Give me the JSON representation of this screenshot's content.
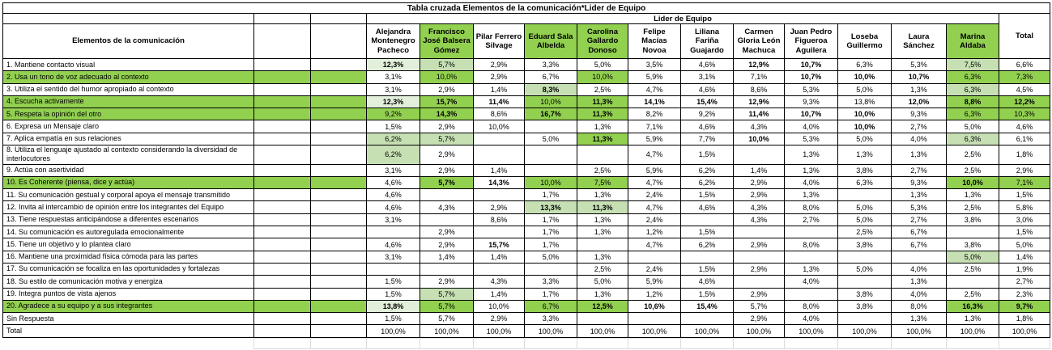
{
  "title": "Tabla cruzada Elementos de la comunicación*Lider de Equipo",
  "group_header": "Lider de Equipo",
  "row_header": "Elementos de la comunicación",
  "total_label": "Total",
  "colors": {
    "green_bright": "#92D050",
    "green_medium": "#C6E0B4",
    "green_pale": "#E2EFDA",
    "border": "#000000",
    "ghost_grid": "#dcdcdc"
  },
  "leaders": [
    {
      "name": "Alejandra Montenegro Pacheco",
      "highlight": false
    },
    {
      "name": "Francisco José Balsera Gómez",
      "highlight": true
    },
    {
      "name": "Pilar Ferrero Silvage",
      "highlight": false
    },
    {
      "name": "Eduard Sala Albelda",
      "highlight": true
    },
    {
      "name": "Carolina Gallardo Donoso",
      "highlight": true
    },
    {
      "name": "Felipe Macías Novoa",
      "highlight": false
    },
    {
      "name": "Liliana Fariña Guajardo",
      "highlight": false
    },
    {
      "name": "Carmen Gloria León Machuca",
      "highlight": false
    },
    {
      "name": "Juan Pedro Figueroa Aguilera",
      "highlight": false
    },
    {
      "name": "Loseba Guillermo",
      "highlight": false
    },
    {
      "name": "Laura Sánchez",
      "highlight": false
    },
    {
      "name": "Marina Aldaba",
      "highlight": true
    }
  ],
  "rows": [
    {
      "label": "1. Mantiene  contacto visual",
      "label_highlight": false,
      "cells": [
        {
          "v": "12,3%",
          "bg": "p",
          "b": true
        },
        {
          "v": "5,7%",
          "bg": "m"
        },
        {
          "v": "2,9%"
        },
        {
          "v": "3,3%"
        },
        {
          "v": "5,0%"
        },
        {
          "v": "3,5%"
        },
        {
          "v": "4,6%"
        },
        {
          "v": "12,9%",
          "b": true
        },
        {
          "v": "10,7%",
          "b": true
        },
        {
          "v": "6,3%"
        },
        {
          "v": "5,3%"
        },
        {
          "v": "7,5%",
          "bg": "m"
        },
        {
          "v": "6,6%"
        }
      ]
    },
    {
      "label": "2. Usa un tono de voz adecuado al contexto",
      "label_highlight": true,
      "cells": [
        {
          "v": "3,1%"
        },
        {
          "v": "10,0%",
          "bg": "g"
        },
        {
          "v": "2,9%"
        },
        {
          "v": "6,7%"
        },
        {
          "v": "10,0%",
          "bg": "g"
        },
        {
          "v": "5,9%"
        },
        {
          "v": "3,1%"
        },
        {
          "v": "7,1%"
        },
        {
          "v": "10,7%",
          "b": true
        },
        {
          "v": "10,0%",
          "b": true
        },
        {
          "v": "10,7%",
          "b": true
        },
        {
          "v": "6,3%",
          "bg": "g"
        },
        {
          "v": "7,3%",
          "bg": "g"
        }
      ]
    },
    {
      "label": "3. Utiliza el sentido del humor apropiado al contexto",
      "label_highlight": false,
      "cells": [
        {
          "v": "3,1%"
        },
        {
          "v": "2,9%"
        },
        {
          "v": "1,4%"
        },
        {
          "v": "8,3%",
          "bg": "m",
          "b": true
        },
        {
          "v": "2,5%"
        },
        {
          "v": "4,7%"
        },
        {
          "v": "4,6%"
        },
        {
          "v": "8,6%"
        },
        {
          "v": "5,3%"
        },
        {
          "v": "5,0%"
        },
        {
          "v": "1,3%"
        },
        {
          "v": "6,3%",
          "bg": "m"
        },
        {
          "v": "4,5%"
        }
      ]
    },
    {
      "label": "4. Escucha activamente",
      "label_highlight": true,
      "cells": [
        {
          "v": "12,3%",
          "bg": "p",
          "b": true
        },
        {
          "v": "15,7%",
          "bg": "g",
          "b": true
        },
        {
          "v": "11,4%",
          "b": true
        },
        {
          "v": "10,0%",
          "bg": "g"
        },
        {
          "v": "11,3%",
          "bg": "g",
          "b": true
        },
        {
          "v": "14,1%",
          "b": true
        },
        {
          "v": "15,4%",
          "b": true
        },
        {
          "v": "12,9%",
          "b": true
        },
        {
          "v": "9,3%"
        },
        {
          "v": "13,8%"
        },
        {
          "v": "12,0%",
          "b": true
        },
        {
          "v": "8,8%",
          "bg": "g",
          "b": true
        },
        {
          "v": "12,2%",
          "bg": "g",
          "b": true
        }
      ]
    },
    {
      "label": "5. Respeta la opinión del otro",
      "label_highlight": true,
      "cells": [
        {
          "v": "9,2%",
          "bg": "g"
        },
        {
          "v": "14,3%",
          "bg": "g",
          "b": true
        },
        {
          "v": "8,6%"
        },
        {
          "v": "16,7%",
          "bg": "g",
          "b": true
        },
        {
          "v": "11,3%",
          "bg": "g",
          "b": true
        },
        {
          "v": "8,2%"
        },
        {
          "v": "9,2%"
        },
        {
          "v": "11,4%",
          "b": true
        },
        {
          "v": "10,7%",
          "b": true
        },
        {
          "v": "10,0%",
          "b": true
        },
        {
          "v": "9,3%"
        },
        {
          "v": "6,3%",
          "bg": "g"
        },
        {
          "v": "10,3%",
          "bg": "g"
        }
      ]
    },
    {
      "label": "6. Expresa un Mensaje claro",
      "label_highlight": false,
      "cells": [
        {
          "v": "1,5%"
        },
        {
          "v": "2,9%"
        },
        {
          "v": "10,0%"
        },
        null,
        {
          "v": "1,3%"
        },
        {
          "v": "7,1%"
        },
        {
          "v": "4,6%"
        },
        {
          "v": "4,3%"
        },
        {
          "v": "4,0%"
        },
        {
          "v": "10,0%",
          "b": true
        },
        {
          "v": "2,7%"
        },
        {
          "v": "5,0%"
        },
        {
          "v": "4,6%"
        }
      ]
    },
    {
      "label": "7. Aplica empatía en sus relaciones",
      "label_highlight": false,
      "cells": [
        {
          "v": "6,2%",
          "bg": "m"
        },
        {
          "v": "5,7%",
          "bg": "m"
        },
        null,
        {
          "v": "5,0%"
        },
        {
          "v": "11,3%",
          "bg": "g",
          "b": true
        },
        {
          "v": "5,9%"
        },
        {
          "v": "7,7%"
        },
        {
          "v": "10,0%",
          "b": true
        },
        {
          "v": "5,3%"
        },
        {
          "v": "5,0%"
        },
        {
          "v": "4,0%"
        },
        {
          "v": "6,3%",
          "bg": "m"
        },
        {
          "v": "6,1%"
        }
      ]
    },
    {
      "label": "8. Utiliza el lenguaje  ajustado al contexto considerando la diversidad de interlocutores",
      "label_highlight": false,
      "cells": [
        {
          "v": "6,2%",
          "bg": "m"
        },
        {
          "v": "2,9%"
        },
        null,
        null,
        null,
        {
          "v": "4,7%"
        },
        {
          "v": "1,5%"
        },
        null,
        {
          "v": "1,3%"
        },
        {
          "v": "1,3%"
        },
        {
          "v": "1,3%"
        },
        {
          "v": "2,5%"
        },
        {
          "v": "1,8%"
        }
      ]
    },
    {
      "label": "9. Actúa con asertividad",
      "label_highlight": false,
      "cells": [
        {
          "v": "3,1%"
        },
        {
          "v": "2,9%"
        },
        {
          "v": "1,4%"
        },
        null,
        {
          "v": "2,5%"
        },
        {
          "v": "5,9%"
        },
        {
          "v": "6,2%"
        },
        {
          "v": "1,4%"
        },
        {
          "v": "1,3%"
        },
        {
          "v": "3,8%"
        },
        {
          "v": "2,7%"
        },
        {
          "v": "2,5%"
        },
        {
          "v": "2,9%"
        }
      ]
    },
    {
      "label": "10. Es Coherente (piensa, dice y actúa)",
      "label_highlight": true,
      "cells": [
        {
          "v": "4,6%"
        },
        {
          "v": "5,7%",
          "bg": "g",
          "b": true
        },
        {
          "v": "14,3%",
          "b": true
        },
        {
          "v": "10,0%",
          "bg": "g"
        },
        {
          "v": "7,5%",
          "bg": "g"
        },
        {
          "v": "4,7%"
        },
        {
          "v": "6,2%"
        },
        {
          "v": "2,9%"
        },
        {
          "v": "4,0%"
        },
        {
          "v": "6,3%"
        },
        {
          "v": "9,3%"
        },
        {
          "v": "10,0%",
          "bg": "g",
          "b": true
        },
        {
          "v": "7,1%",
          "bg": "g"
        }
      ]
    },
    {
      "label": "11. Su comunicación gestual y corporal apoya el mensaje transmitido",
      "label_highlight": false,
      "cells": [
        {
          "v": "4,6%"
        },
        null,
        null,
        {
          "v": "1,7%"
        },
        {
          "v": "1,3%"
        },
        {
          "v": "2,4%"
        },
        {
          "v": "1,5%"
        },
        {
          "v": "2,9%"
        },
        {
          "v": "1,3%"
        },
        null,
        {
          "v": "1,3%"
        },
        {
          "v": "1,3%"
        },
        {
          "v": "1,5%"
        }
      ]
    },
    {
      "label": "12. Invita al intercambio de opinión entre los integrantes del Equipo",
      "label_highlight": false,
      "cells": [
        {
          "v": "4,6%"
        },
        {
          "v": "4,3%"
        },
        {
          "v": "2,9%"
        },
        {
          "v": "13,3%",
          "bg": "m",
          "b": true
        },
        {
          "v": "11,3%",
          "bg": "m",
          "b": true
        },
        {
          "v": "4,7%"
        },
        {
          "v": "4,6%"
        },
        {
          "v": "4,3%"
        },
        {
          "v": "8,0%"
        },
        {
          "v": "5,0%"
        },
        {
          "v": "5,3%"
        },
        {
          "v": "2,5%"
        },
        {
          "v": "5,8%"
        }
      ]
    },
    {
      "label": "13. Tiene  respuestas  anticipándose a diferentes escenarios",
      "label_highlight": false,
      "cells": [
        {
          "v": "3,1%"
        },
        null,
        {
          "v": "8,6%"
        },
        {
          "v": "1,7%"
        },
        {
          "v": "1,3%"
        },
        {
          "v": "2,4%"
        },
        null,
        {
          "v": "4,3%"
        },
        {
          "v": "2,7%"
        },
        {
          "v": "5,0%"
        },
        {
          "v": "2,7%"
        },
        {
          "v": "3,8%"
        },
        {
          "v": "3,0%"
        }
      ]
    },
    {
      "label": "14. Su comunicación es  autoregulada  emocionalmente",
      "label_highlight": false,
      "cells": [
        null,
        {
          "v": "2,9%"
        },
        null,
        {
          "v": "1,7%"
        },
        {
          "v": "1,3%"
        },
        {
          "v": "1,2%"
        },
        {
          "v": "1,5%"
        },
        null,
        null,
        {
          "v": "2,5%"
        },
        {
          "v": "6,7%"
        },
        null,
        {
          "v": "1,5%"
        }
      ]
    },
    {
      "label": "15. Tiene un objetivo y lo plantea claro",
      "label_highlight": false,
      "cells": [
        {
          "v": "4,6%"
        },
        {
          "v": "2,9%"
        },
        {
          "v": "15,7%",
          "b": true
        },
        {
          "v": "1,7%"
        },
        null,
        {
          "v": "4,7%"
        },
        {
          "v": "6,2%"
        },
        {
          "v": "2,9%"
        },
        {
          "v": "8,0%"
        },
        {
          "v": "3,8%"
        },
        {
          "v": "6,7%"
        },
        {
          "v": "3,8%"
        },
        {
          "v": "5,0%"
        }
      ]
    },
    {
      "label": "16. Mantiene una proximidad física cómoda para las partes",
      "label_highlight": false,
      "cells": [
        {
          "v": "3,1%"
        },
        {
          "v": "1,4%"
        },
        {
          "v": "1,4%"
        },
        {
          "v": "5,0%"
        },
        {
          "v": "1,3%"
        },
        null,
        null,
        null,
        null,
        null,
        null,
        {
          "v": "5,0%",
          "bg": "m"
        },
        {
          "v": "1,4%"
        }
      ]
    },
    {
      "label": "17. Su comunicación se focaliza en las oportunidades y fortalezas",
      "label_highlight": false,
      "cells": [
        null,
        null,
        null,
        null,
        {
          "v": "2,5%"
        },
        {
          "v": "2,4%"
        },
        {
          "v": "1,5%"
        },
        {
          "v": "2,9%"
        },
        {
          "v": "1,3%"
        },
        {
          "v": "5,0%"
        },
        {
          "v": "4,0%"
        },
        {
          "v": "2,5%"
        },
        {
          "v": "1,9%"
        }
      ]
    },
    {
      "label": "18. Su estilo  de comunicación motiva y energiza",
      "label_highlight": false,
      "cells": [
        {
          "v": "1,5%"
        },
        {
          "v": "2,9%"
        },
        {
          "v": "4,3%"
        },
        {
          "v": "3,3%"
        },
        {
          "v": "5,0%"
        },
        {
          "v": "5,9%"
        },
        {
          "v": "4,6%"
        },
        null,
        {
          "v": "4,0%"
        },
        null,
        {
          "v": "1,3%"
        },
        null,
        {
          "v": "2,7%"
        }
      ]
    },
    {
      "label": "19. Integra puntos de vista ajenos",
      "label_highlight": false,
      "cells": [
        {
          "v": "1,5%"
        },
        {
          "v": "5,7%",
          "bg": "m"
        },
        {
          "v": "1,4%"
        },
        {
          "v": "1,7%"
        },
        {
          "v": "1,3%"
        },
        {
          "v": "1,2%"
        },
        {
          "v": "1,5%"
        },
        {
          "v": "2,9%"
        },
        null,
        {
          "v": "3,8%"
        },
        {
          "v": "4,0%"
        },
        {
          "v": "2,5%"
        },
        {
          "v": "2,3%"
        }
      ]
    },
    {
      "label": "20. Agradece a su equipo y a sus integrantes",
      "label_highlight": true,
      "cells": [
        {
          "v": "13,8%",
          "bg": "p",
          "b": true
        },
        {
          "v": "5,7%",
          "bg": "g"
        },
        {
          "v": "10,0%"
        },
        {
          "v": "6,7%",
          "bg": "g"
        },
        {
          "v": "12,5%",
          "bg": "g",
          "b": true
        },
        {
          "v": "10,6%",
          "b": true
        },
        {
          "v": "15,4%",
          "b": true
        },
        {
          "v": "5,7%"
        },
        {
          "v": "8,0%"
        },
        {
          "v": "3,8%"
        },
        {
          "v": "8,0%"
        },
        {
          "v": "16,3%",
          "bg": "g",
          "b": true
        },
        {
          "v": "9,7%",
          "bg": "g",
          "b": true
        }
      ]
    },
    {
      "label": "Sin Respuesta",
      "label_highlight": false,
      "cells": [
        {
          "v": "1,5%"
        },
        {
          "v": "5,7%"
        },
        {
          "v": "2,9%"
        },
        {
          "v": "3,3%"
        },
        null,
        null,
        null,
        {
          "v": "2,9%"
        },
        {
          "v": "4,0%"
        },
        null,
        {
          "v": "1,3%"
        },
        {
          "v": "1,3%"
        },
        {
          "v": "1,8%"
        }
      ]
    },
    {
      "label": "Total",
      "label_highlight": false,
      "cells": [
        {
          "v": "100,0%"
        },
        {
          "v": "100,0%"
        },
        {
          "v": "100,0%"
        },
        {
          "v": "100,0%"
        },
        {
          "v": "100,0%"
        },
        {
          "v": "100,0%"
        },
        {
          "v": "100,0%"
        },
        {
          "v": "100,0%"
        },
        {
          "v": "100,0%"
        },
        {
          "v": "100,0%"
        },
        {
          "v": "100,0%"
        },
        {
          "v": "100,0%"
        },
        {
          "v": "100,0%"
        }
      ]
    }
  ]
}
